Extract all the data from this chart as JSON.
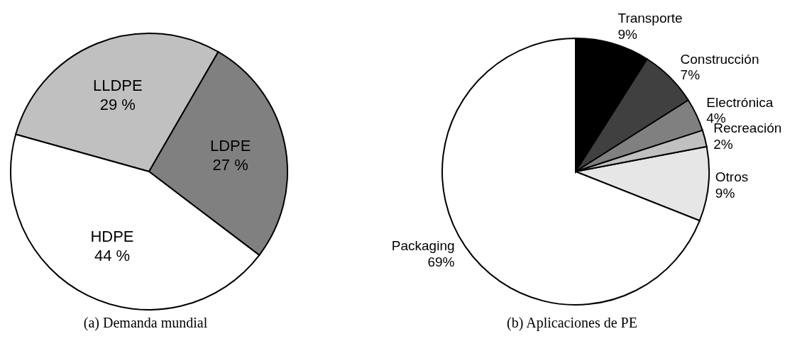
{
  "chart_data": [
    {
      "type": "pie",
      "title": "(a) Demanda mundial",
      "categories": [
        "LLDPE",
        "LDPE",
        "HDPE"
      ],
      "values": [
        29,
        27,
        44
      ],
      "colors": [
        "#c0c0c0",
        "#808080",
        "#ffffff"
      ],
      "value_labels": [
        "29 %",
        "27 %",
        "44 %"
      ]
    },
    {
      "type": "pie",
      "title": "(b) Aplicaciones de PE",
      "categories": [
        "Otros",
        "Packaging",
        "Transporte",
        "Construcción",
        "Electrónica",
        "Recreación"
      ],
      "values": [
        9,
        69,
        9,
        7,
        4,
        2
      ],
      "colors": [
        "#e6e6e6",
        "#ffffff",
        "#000000",
        "#404040",
        "#808080",
        "#c0c0c0"
      ],
      "value_labels": [
        "9%",
        "69%",
        "9%",
        "7%",
        "4%",
        "2%"
      ]
    }
  ]
}
